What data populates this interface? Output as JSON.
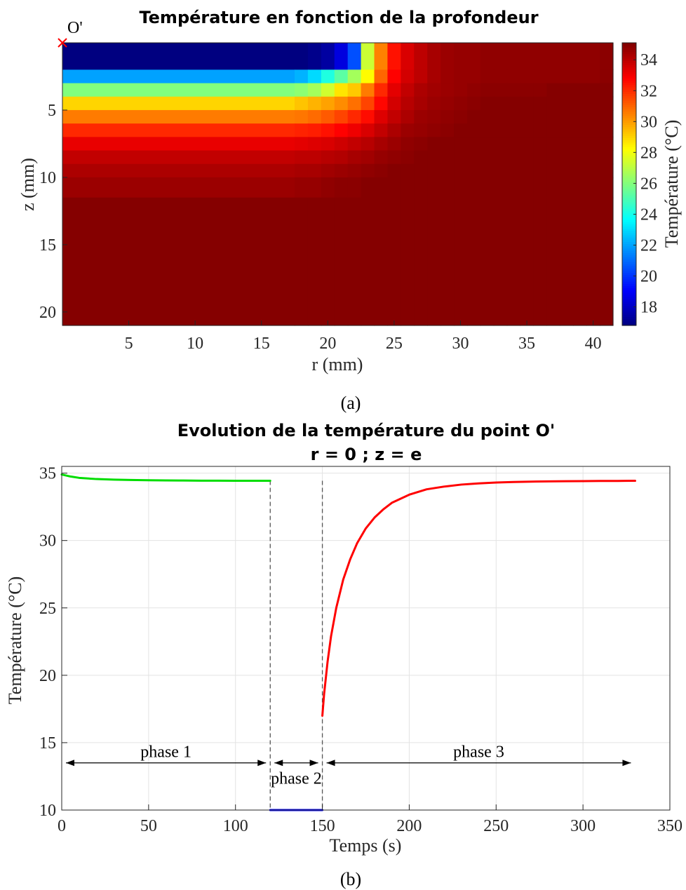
{
  "chart_data": [
    {
      "type": "heatmap",
      "panel_label": "(a)",
      "title": "Température en fonction de la profondeur",
      "xlabel": "r (mm)",
      "ylabel": "z (mm)",
      "xlim": [
        0,
        41.5
      ],
      "ylim": [
        0,
        21
      ],
      "y_direction": "reverse",
      "xticks": [
        5,
        10,
        15,
        20,
        25,
        30,
        35,
        40
      ],
      "yticks": [
        5,
        10,
        15,
        20
      ],
      "marker": {
        "label": "O'",
        "symbol": "×",
        "r": 0,
        "z": 0,
        "color": "#ff0000"
      },
      "colorbar": {
        "label": "Température (°C)",
        "range": [
          16.8,
          35.1
        ],
        "ticks": [
          18,
          20,
          22,
          24,
          26,
          28,
          30,
          32,
          34
        ],
        "colormap": "jet"
      },
      "r_edges": [
        0,
        17.5,
        18.5,
        19.5,
        20.5,
        21.5,
        22.5,
        23.5,
        24.5,
        25.5,
        26.5,
        27.5,
        28.5,
        29.5,
        30.5,
        31.5,
        32.5,
        33.5,
        34.5,
        35.5,
        36.5,
        37.5,
        38.5,
        39.5,
        40.5,
        41.5
      ],
      "z_edges": [
        0,
        2,
        3,
        4,
        5,
        6,
        7,
        8,
        9,
        10,
        11.5,
        21
      ],
      "values": [
        [
          16.8,
          16.8,
          17.0,
          17.4,
          18.5,
          20.5,
          27.3,
          30.5,
          32.5,
          33.5,
          34.0,
          34.4,
          34.6,
          34.7,
          34.7,
          34.8,
          34.8,
          34.8,
          34.8,
          34.8,
          34.8,
          34.8,
          34.8,
          34.8,
          34.9
        ],
        [
          22.0,
          22.3,
          23.0,
          24.2,
          25.3,
          26.6,
          28.3,
          31.0,
          32.8,
          33.6,
          34.0,
          34.4,
          34.6,
          34.7,
          34.7,
          34.8,
          34.8,
          34.8,
          34.8,
          34.8,
          34.8,
          34.8,
          34.8,
          34.8,
          34.9
        ],
        [
          26.0,
          26.2,
          26.6,
          27.4,
          28.7,
          29.2,
          30.6,
          32.1,
          33.3,
          33.9,
          34.3,
          34.5,
          34.6,
          34.7,
          34.8,
          34.9,
          34.9,
          34.9,
          34.9,
          34.9,
          35.0,
          35.0,
          35.0,
          35.0,
          35.0
        ],
        [
          29.0,
          29.3,
          29.6,
          29.9,
          30.3,
          30.8,
          31.6,
          32.7,
          33.6,
          34.1,
          34.4,
          34.6,
          34.7,
          34.8,
          34.9,
          35.0,
          35.0,
          35.0,
          35.0,
          35.0,
          35.0,
          35.0,
          35.0,
          35.0,
          35.0
        ],
        [
          30.6,
          30.7,
          30.9,
          31.2,
          31.6,
          32.1,
          32.6,
          33.4,
          33.9,
          34.3,
          34.6,
          34.7,
          34.8,
          34.9,
          35.0,
          35.0,
          35.0,
          35.0,
          35.0,
          35.0,
          35.0,
          35.0,
          35.0,
          35.0,
          35.0
        ],
        [
          32.1,
          32.2,
          32.3,
          32.5,
          32.8,
          33.1,
          33.5,
          33.9,
          34.3,
          34.6,
          34.7,
          34.8,
          34.9,
          35.0,
          35.0,
          35.0,
          35.0,
          35.0,
          35.0,
          35.0,
          35.0,
          35.0,
          35.0,
          35.0,
          35.0
        ],
        [
          33.2,
          33.3,
          33.4,
          33.5,
          33.7,
          33.9,
          34.1,
          34.4,
          34.6,
          34.8,
          34.9,
          35.0,
          35.0,
          35.0,
          35.0,
          35.0,
          35.0,
          35.0,
          35.0,
          35.0,
          35.0,
          35.0,
          35.0,
          35.0,
          35.0
        ],
        [
          33.9,
          34.0,
          34.0,
          34.1,
          34.2,
          34.4,
          34.5,
          34.7,
          34.8,
          34.9,
          35.0,
          35.0,
          35.0,
          35.0,
          35.0,
          35.0,
          35.0,
          35.0,
          35.0,
          35.0,
          35.0,
          35.0,
          35.0,
          35.0,
          35.0
        ],
        [
          34.3,
          34.4,
          34.4,
          34.5,
          34.6,
          34.7,
          34.8,
          34.9,
          35.0,
          35.0,
          35.0,
          35.0,
          35.0,
          35.0,
          35.0,
          35.0,
          35.0,
          35.0,
          35.0,
          35.0,
          35.0,
          35.0,
          35.0,
          35.0,
          35.0
        ],
        [
          34.6,
          34.7,
          34.7,
          34.8,
          34.9,
          34.9,
          35.0,
          35.0,
          35.0,
          35.0,
          35.0,
          35.0,
          35.0,
          35.0,
          35.0,
          35.0,
          35.0,
          35.0,
          35.0,
          35.0,
          35.0,
          35.0,
          35.0,
          35.0,
          35.0
        ],
        [
          35.0,
          35.0,
          35.0,
          35.0,
          35.0,
          35.0,
          35.0,
          35.0,
          35.0,
          35.0,
          35.0,
          35.0,
          35.0,
          35.0,
          35.0,
          35.0,
          35.0,
          35.0,
          35.0,
          35.0,
          35.0,
          35.0,
          35.0,
          35.0,
          35.0
        ]
      ]
    },
    {
      "type": "line",
      "panel_label": "(b)",
      "title": "Evolution de la température du point O'",
      "subtitle": "r = 0 ; z = e",
      "xlabel": "Temps (s)",
      "ylabel": "Température (°C)",
      "xlim": [
        0,
        350
      ],
      "ylim": [
        10,
        35.5
      ],
      "xticks": [
        0,
        50,
        100,
        150,
        200,
        250,
        300,
        350
      ],
      "yticks": [
        10,
        15,
        20,
        25,
        30,
        35
      ],
      "grid": true,
      "series": [
        {
          "color": "#00dd00",
          "x": [
            0,
            5,
            10,
            20,
            30,
            40,
            50,
            60,
            70,
            80,
            90,
            100,
            110,
            120
          ],
          "y": [
            34.9,
            34.75,
            34.65,
            34.56,
            34.52,
            34.49,
            34.47,
            34.46,
            34.45,
            34.44,
            34.44,
            34.43,
            34.43,
            34.43
          ]
        },
        {
          "color": "#0000ff",
          "x": [
            120,
            150
          ],
          "y": [
            10,
            10
          ]
        },
        {
          "color": "#ff0000",
          "x": [
            150,
            151,
            153,
            155,
            158,
            162,
            166,
            170,
            175,
            180,
            185,
            190,
            200,
            210,
            220,
            230,
            240,
            250,
            260,
            270,
            280,
            290,
            300,
            310,
            320,
            330
          ],
          "y": [
            17.0,
            18.6,
            21.0,
            22.9,
            25.0,
            27.1,
            28.6,
            29.8,
            30.9,
            31.7,
            32.3,
            32.8,
            33.4,
            33.8,
            34.0,
            34.15,
            34.24,
            34.3,
            34.34,
            34.37,
            34.39,
            34.4,
            34.41,
            34.42,
            34.42,
            34.43
          ]
        }
      ],
      "dashed_lines_x": [
        120,
        150
      ],
      "annotations": [
        {
          "text": "phase 1",
          "x_range": [
            0,
            120
          ],
          "arrow_y": 13.5
        },
        {
          "text": "phase 2",
          "x_range": [
            120,
            150
          ],
          "arrow_y": 13.5
        },
        {
          "text": "phase 3",
          "x_range": [
            150,
            330
          ],
          "arrow_y": 13.5
        }
      ]
    }
  ]
}
